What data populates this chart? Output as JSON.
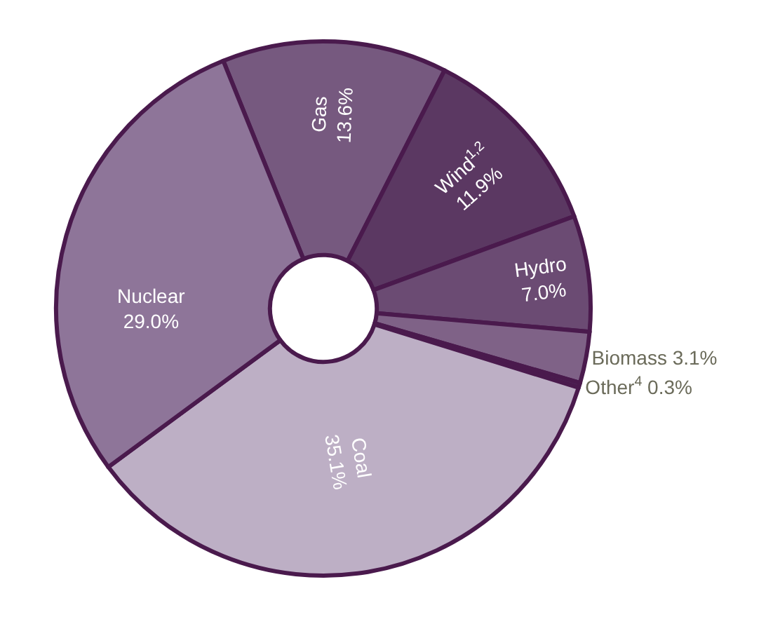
{
  "chart_data": {
    "type": "donut",
    "categories": [
      "Gas",
      "Wind$^{1,2}$",
      "Hydro",
      "Biomass",
      "Other$^{4}$",
      "Coal",
      "Nuclear"
    ],
    "values": [
      13.6,
      11.9,
      7.0,
      3.1,
      0.3,
      35.1,
      29.0
    ],
    "value_labels": [
      "13.6%",
      "11.9%",
      "7.0%",
      "3.1%",
      "0.3%",
      "35.1%",
      "29.0%"
    ],
    "colors": [
      "#76597f",
      "#5b3862",
      "#6b4b73",
      "#7f6287",
      "#4e2656",
      "#bdafc5",
      "#8e7599"
    ],
    "legend": false
  }
}
